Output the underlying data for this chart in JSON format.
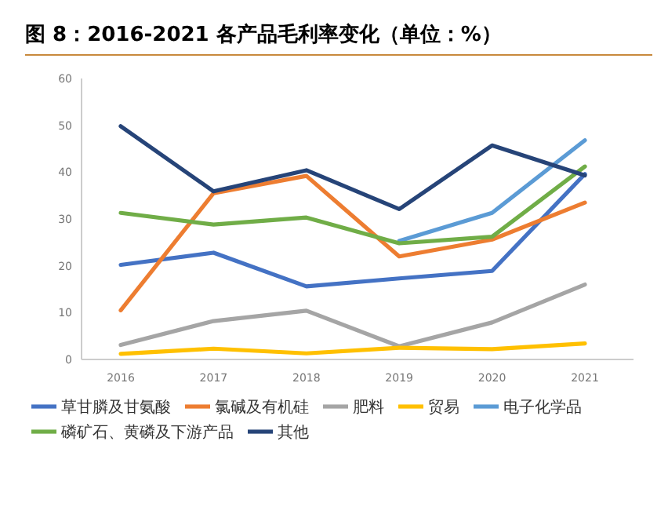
{
  "chart_data": {
    "type": "line",
    "title": "图 8：2016-2021 各产品毛利率变化（单位：%）",
    "categories": [
      "2016",
      "2017",
      "2018",
      "2019",
      "2020",
      "2021"
    ],
    "ylim": [
      0,
      60
    ],
    "yticks": [
      0,
      10,
      20,
      30,
      40,
      50,
      60
    ],
    "grid": false,
    "legend": "bottom",
    "series": [
      {
        "name": "草甘膦及甘氨酸",
        "color": "#4472c4",
        "values": [
          20.2,
          22.8,
          15.6,
          17.3,
          18.9,
          39.6
        ]
      },
      {
        "name": "氯碱及有机硅",
        "color": "#ed7d31",
        "values": [
          10.5,
          35.5,
          39.2,
          22,
          25.6,
          33.5
        ]
      },
      {
        "name": "肥料",
        "color": "#a5a5a5",
        "values": [
          3.1,
          8.2,
          10.4,
          2.8,
          7.9,
          16
        ]
      },
      {
        "name": "贸易",
        "color": "#ffc000",
        "values": [
          1.2,
          2.3,
          1.3,
          2.5,
          2.2,
          3.4
        ]
      },
      {
        "name": "电子化学品",
        "color": "#5b9bd5",
        "values": [
          null,
          null,
          null,
          25.3,
          31.3,
          46.8
        ]
      },
      {
        "name": "磷矿石、黄磷及下游产品",
        "color": "#70ad47",
        "values": [
          31.3,
          28.8,
          30.3,
          24.8,
          26.2,
          41.2
        ]
      },
      {
        "name": "其他",
        "color": "#264478",
        "values": [
          49.8,
          35.9,
          40.4,
          32.1,
          45.7,
          39.3
        ]
      }
    ]
  }
}
